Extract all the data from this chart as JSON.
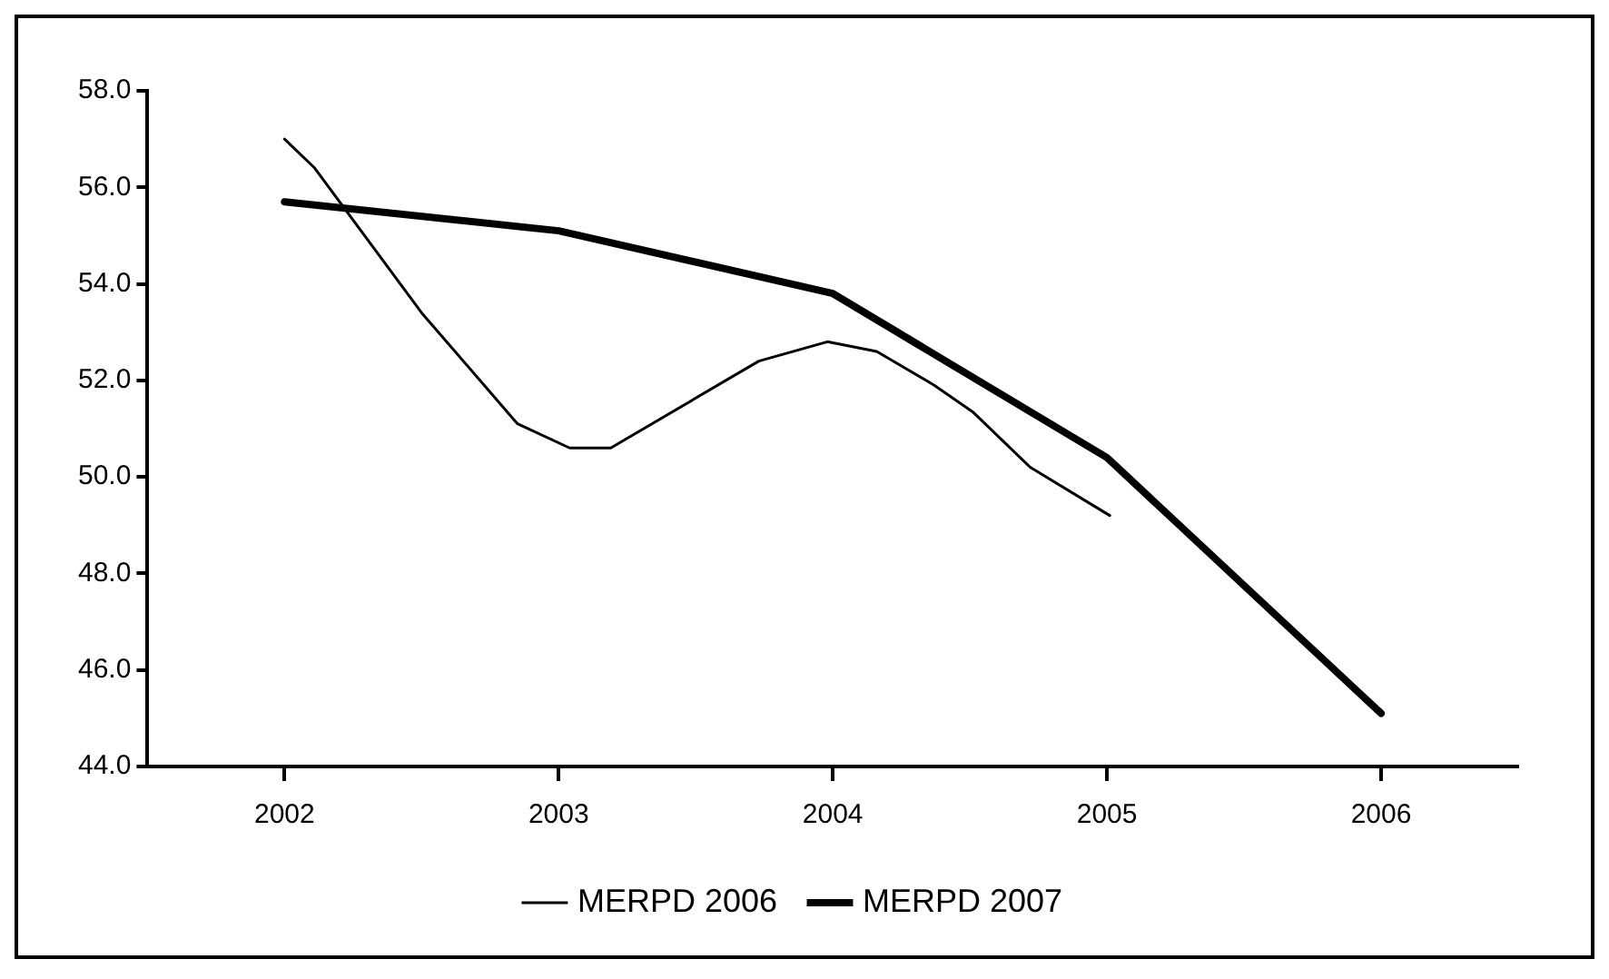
{
  "chart_data": {
    "type": "line",
    "legend": "bottom",
    "marker": "none",
    "line_style": "solid",
    "grid": false,
    "xlim": [
      2001.5,
      2006.5
    ],
    "xticks": [
      2002,
      2003,
      2004,
      2005,
      2006
    ],
    "ylim": [
      44,
      58
    ],
    "yticks": [
      {
        "value": 44,
        "label": "44.0"
      },
      {
        "value": 46,
        "label": "46.0"
      },
      {
        "value": 48,
        "label": "48.0"
      },
      {
        "value": 50,
        "label": "50.0"
      },
      {
        "value": 52,
        "label": "52.0"
      },
      {
        "value": 54,
        "label": "54.0"
      },
      {
        "value": 56,
        "label": "56.0"
      },
      {
        "value": 58,
        "label": "58.0"
      }
    ],
    "series": [
      {
        "name": "MERPD 2006",
        "color": "#000000",
        "x": [
          2002,
          2002.11,
          2002.5,
          2002.85,
          2003.04,
          2003.19,
          2003.73,
          2003.98,
          2004.16,
          2004.37,
          2004.51,
          2004.72,
          2005.01
        ],
        "values": [
          57.0,
          56.4,
          53.4,
          51.1,
          50.6,
          50.6,
          52.4,
          52.8,
          52.6,
          51.9,
          51.35,
          50.2,
          49.2
        ]
      },
      {
        "name": "MERPD 2007",
        "color": "#000000",
        "x": [
          2002,
          2003,
          2004,
          2005,
          2006
        ],
        "values": [
          55.7,
          55.1,
          53.8,
          50.4,
          45.1
        ]
      }
    ]
  }
}
